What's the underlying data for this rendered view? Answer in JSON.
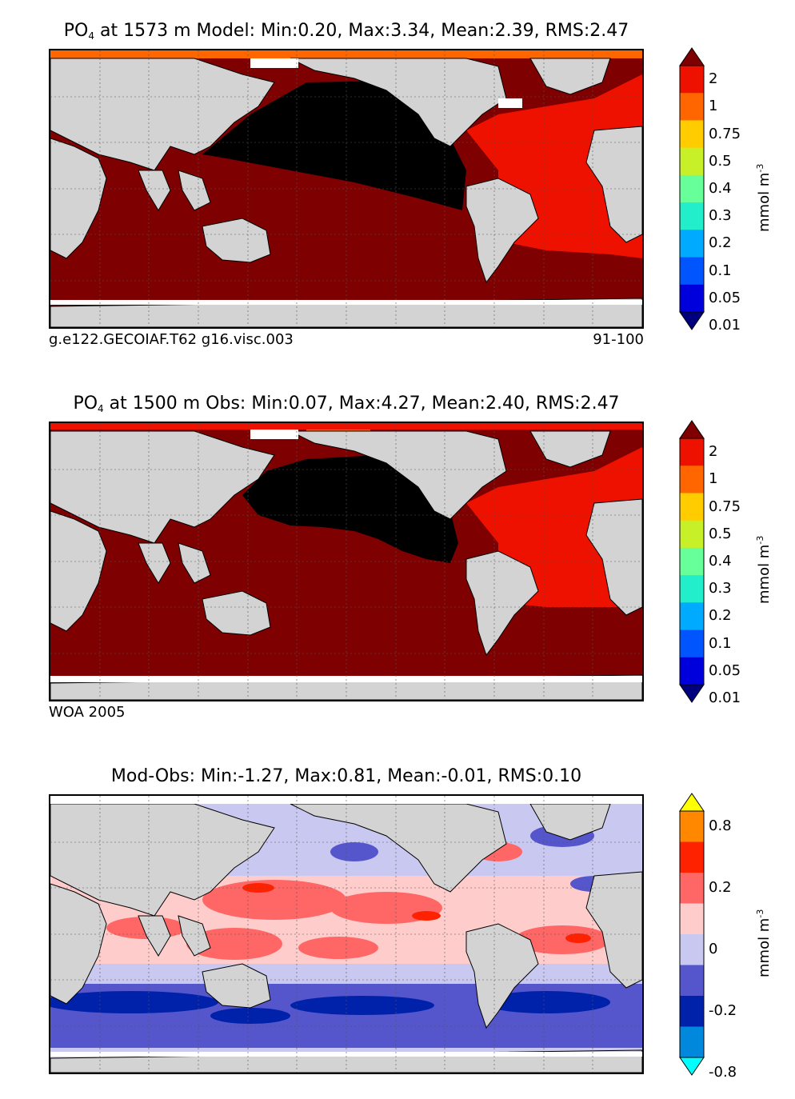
{
  "panels": [
    {
      "id": "model",
      "title_prefix": "PO",
      "title_sub": "4",
      "title_rest": " at 1573 m Model: Min:0.20, Max:3.34, Mean:2.39, RMS:2.47",
      "caption_left": "g.e122.GECOIAF.T62 g16.visc.003",
      "caption_right": "91-100",
      "colorbar": {
        "ticks": [
          "2",
          "1",
          "0.75",
          "0.5",
          "0.4",
          "0.3",
          "0.2",
          "0.1",
          "0.05",
          "0.01"
        ],
        "colors": [
          "#7f0000",
          "#ee1100",
          "#ff6600",
          "#ffcc00",
          "#c8f028",
          "#66ff99",
          "#22eecc",
          "#00aaff",
          "#0055ff",
          "#0000dd",
          "#00007f"
        ],
        "unit": "mmol m",
        "unit_exp": "-3"
      }
    },
    {
      "id": "obs",
      "title_prefix": "PO",
      "title_sub": "4",
      "title_rest": " at 1500 m Obs: Min:0.07, Max:4.27, Mean:2.40, RMS:2.47",
      "caption_left": "WOA 2005",
      "colorbar": {
        "ticks": [
          "2",
          "1",
          "0.75",
          "0.5",
          "0.4",
          "0.3",
          "0.2",
          "0.1",
          "0.05",
          "0.01"
        ],
        "colors": [
          "#7f0000",
          "#ee1100",
          "#ff6600",
          "#ffcc00",
          "#c8f028",
          "#66ff99",
          "#22eecc",
          "#00aaff",
          "#0055ff",
          "#0000dd",
          "#00007f"
        ],
        "unit": "mmol m",
        "unit_exp": "-3"
      }
    },
    {
      "id": "diff",
      "title_text": "Mod-Obs: Min:-1.27, Max:0.81, Mean:-0.01, RMS:0.10",
      "colorbar": {
        "ticks": [
          "0.8",
          "0.2",
          "0",
          "-0.2",
          "-0.8"
        ],
        "colors": [
          "#ffff00",
          "#ff8800",
          "#ff2200",
          "#ff6666",
          "#ffcccc",
          "#c8c8f0",
          "#5555cc",
          "#0022aa",
          "#0088dd",
          "#00ffff"
        ],
        "unit": "mmol m",
        "unit_exp": "-3"
      }
    }
  ],
  "map_colors": {
    "land": "#d3d3d3",
    "missing": "#ffffff",
    "pacific_model": "#000000",
    "deep_red": "#7f0000",
    "red": "#ee1100",
    "orange": "#ff6600",
    "diff_pos": "#ff6666",
    "diff_lightpos": "#ffcccc",
    "diff_lightneg": "#c8c8f0",
    "diff_neg": "#5555cc",
    "diff_strongneg": "#0022aa"
  }
}
